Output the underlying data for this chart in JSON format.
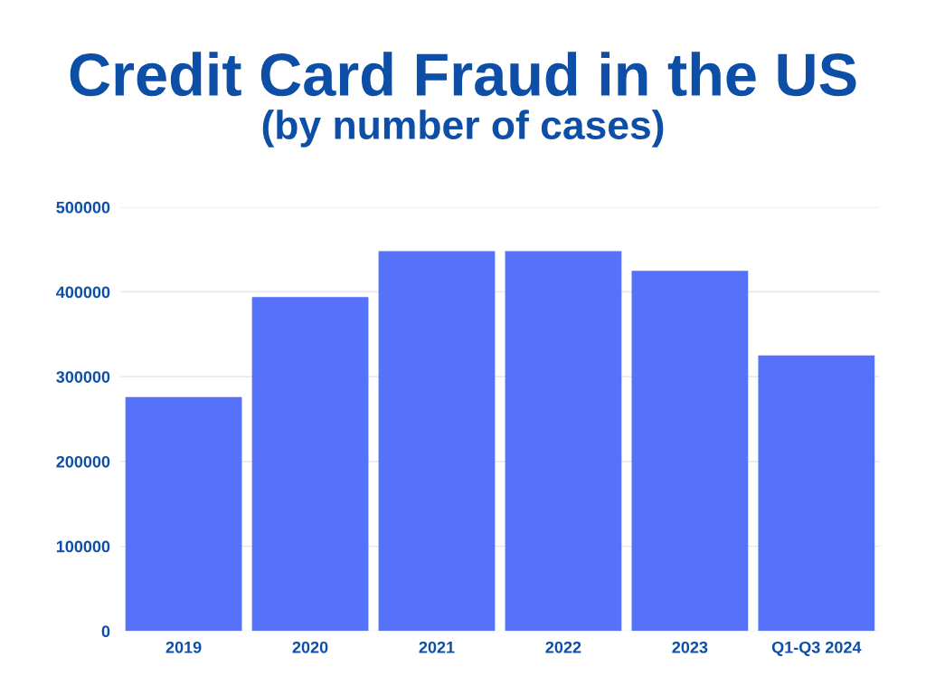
{
  "chart_data": {
    "type": "bar",
    "title": "Credit Card Fraud in the US",
    "subtitle": "(by number of cases)",
    "categories": [
      "2019",
      "2020",
      "2021",
      "2022",
      "2023",
      "Q1-Q3 2024"
    ],
    "values": [
      276000,
      394000,
      448000,
      448000,
      425000,
      325000
    ],
    "color": "#5672fb",
    "ylim": [
      0,
      500000
    ],
    "yticks": [
      0,
      100000,
      200000,
      300000,
      400000,
      500000
    ],
    "grid": "y"
  }
}
